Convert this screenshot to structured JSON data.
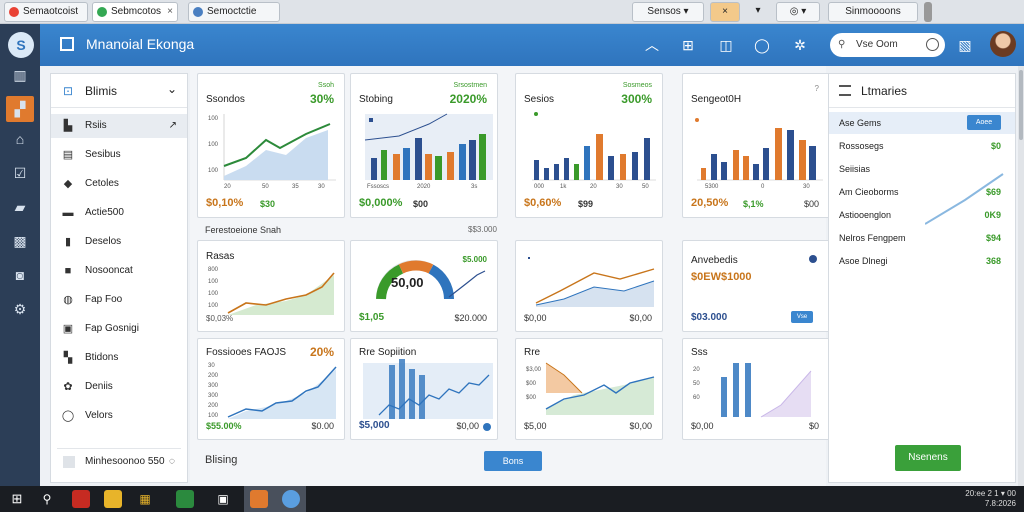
{
  "browser": {
    "tabs": [
      {
        "label": "Semaotcoist",
        "color": "#e94235"
      },
      {
        "label": "Sebmcotos",
        "color": "#34a853"
      },
      {
        "label": "Semoctctie",
        "color": "#4a7fc1"
      }
    ],
    "tab_close": "×",
    "controls": {
      "profile_select": "Sensos",
      "profile_chevron": "▾",
      "alert_select": "×",
      "alert_chevron": "▾",
      "extension": "◎",
      "extension_chevron": "▾",
      "window_menu": "Sinmoooons"
    }
  },
  "app": {
    "logo": "S",
    "title": "Mnanoial Ekonga"
  },
  "header_icons": [
    "chevron-up-icon",
    "grid-icon",
    "chart-icon",
    "chat-icon",
    "share-icon"
  ],
  "search": {
    "placeholder": "Vse Oom"
  },
  "rail_icons": [
    "logo-icon",
    "book-icon",
    "chart-active-icon",
    "home-icon",
    "check-icon",
    "folder-icon",
    "document-icon",
    "record-icon",
    "settings-icon"
  ],
  "nav": {
    "header": "Blimis",
    "chevron": "⌄",
    "items": [
      {
        "label": "Rsiis",
        "icon": "▙",
        "arrow": "↗",
        "active": true
      },
      {
        "label": "Sesibus",
        "icon": "▤"
      },
      {
        "label": "Cetoles",
        "icon": "◆"
      },
      {
        "label": "Actie500",
        "icon": "▬"
      },
      {
        "label": "Deselos",
        "icon": "▮"
      },
      {
        "label": "Nosooncat",
        "icon": "■"
      },
      {
        "label": "Fap Foo",
        "icon": "◍"
      },
      {
        "label": "Fap Gosnigi",
        "icon": "▣"
      },
      {
        "label": "Btidons",
        "icon": "▚"
      },
      {
        "label": "Deniis",
        "icon": "✿"
      },
      {
        "label": "Velors",
        "icon": "◯"
      }
    ],
    "footer_label": "Minhesoonoo 550",
    "footer_icon": "◌"
  },
  "cards": {
    "r1c1": {
      "title": "Ssondos",
      "small": "Ssoh",
      "pct": "30%",
      "foot_a": "$0,10%",
      "foot_b": "$30",
      "ylabels": [
        "100",
        "100",
        "100"
      ],
      "xlabels": [
        "20",
        "50",
        "35",
        "30"
      ]
    },
    "r1c2": {
      "title": "Stobing",
      "small": "Srsostmen",
      "pct": "2020%",
      "foot_a": "$0,000%",
      "foot_b": "$00",
      "xlabels": [
        "Fssoscs",
        "2020",
        "3s"
      ]
    },
    "r1c3": {
      "title": "Sesios",
      "small": "Sosmeos",
      "pct": "300%",
      "foot_a": "$0,60%",
      "foot_b": "$99",
      "xlabels": [
        "000",
        "1k",
        "20",
        "30",
        "50"
      ]
    },
    "r1c4": {
      "title": "Sengeot0H",
      "pct": "",
      "foot_a": "20,50%",
      "foot_b": "$,1%",
      "foot_r": "$00",
      "xlabels": [
        "5300",
        "0",
        "30"
      ]
    },
    "r2c1": {
      "title": "Rasas",
      "foot_a": "$0,03%",
      "foot_r": "",
      "ylabels": [
        "800",
        "100",
        "100",
        "100"
      ]
    },
    "r2c2": {
      "gauge_value": "50,00",
      "top_right": "$5.000",
      "foot_a": "$1,05",
      "foot_r": "$20.000"
    },
    "r2c3": {
      "foot_a": "$0,00",
      "foot_r": "$0,00"
    },
    "r2c4": {
      "title": "Anvebedis",
      "big": "$0EW$1000",
      "foot_a": "$03.000",
      "button": "Vse"
    },
    "r3c1": {
      "title": "Fossiooes FAOJS",
      "pct": "20%",
      "foot_a": "$55.00%",
      "foot_r": "$0.00",
      "ylabels": [
        "30",
        "200",
        "300",
        "300",
        "200",
        "100"
      ]
    },
    "r3c2": {
      "title": "Rre Sopiition",
      "foot_a": "$5,000",
      "foot_r": "$0,00"
    },
    "r3c3": {
      "title": "Rre",
      "foot_a": "$5,00",
      "foot_r": "$0,00",
      "ylabels": [
        "$3,00",
        "$00",
        "$00"
      ]
    },
    "r3c4": {
      "title": "Sss",
      "foot_a": "$0,00",
      "foot_r": "$0",
      "ylabels": [
        "20",
        "50",
        "60"
      ]
    }
  },
  "section": {
    "label": "Ferestoeione Snah",
    "right": "$$3.000"
  },
  "footer": {
    "label": "Blising",
    "button": "Bons"
  },
  "right_panel": {
    "header": "Ltmaries",
    "rows": [
      {
        "label": "Ase Gems",
        "value": "",
        "chip": "Aoee",
        "selected": true
      },
      {
        "label": "Rossosegs",
        "value": "$0"
      },
      {
        "label": "Seiisias",
        "value": ""
      },
      {
        "label": "Am Cieoborms",
        "value": "$69"
      },
      {
        "label": "Astiooenglon",
        "value": "0K9"
      },
      {
        "label": "Nelros Fengpem",
        "value": "$94"
      },
      {
        "label": "Asoe Dlnegi",
        "value": "368"
      }
    ],
    "button": "Nsenens"
  },
  "taskbar": {
    "tray_line1": "20:ee 2 1 ▾ 00",
    "tray_line2": "7.8:2026"
  },
  "colors": {
    "primary": "#2f74bd",
    "green": "#3a9a2a",
    "orange": "#c8751b",
    "dark_rail": "#2c3e57"
  }
}
